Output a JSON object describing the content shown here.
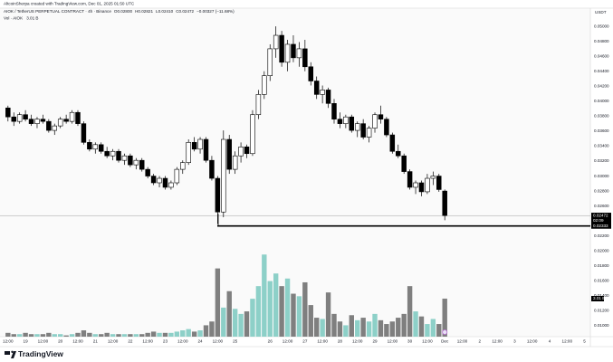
{
  "chart_data": {
    "type": "candlestick",
    "title": "AltcoinSherpa created with TradingView.com, Dec 01, 2025 01:50 UTC",
    "symbol": "AIOK / TetherUS PERPETUAL CONTRACT · 4h · Binance",
    "header_values": [
      "O0.02800",
      "H0.02821",
      "L0.02410",
      "C0.02472",
      "−0.00327 (−11.68%)"
    ],
    "currency": "USDT",
    "logo": "TradingView",
    "up_color": "#ffffff",
    "down_color": "#000000",
    "xlim": [
      -1.37,
      100
    ],
    "xticks": [
      {
        "value": 0,
        "label": "12:00"
      },
      {
        "value": 3,
        "label": "19"
      },
      {
        "value": 6,
        "label": "12:00"
      },
      {
        "value": 9,
        "label": "20"
      },
      {
        "value": 12,
        "label": "12:00"
      },
      {
        "value": 15,
        "label": "21"
      },
      {
        "value": 18,
        "label": "12:00"
      },
      {
        "value": 21,
        "label": "22"
      },
      {
        "value": 24,
        "label": "12:00"
      },
      {
        "value": 27,
        "label": "23"
      },
      {
        "value": 30,
        "label": "12:00"
      },
      {
        "value": 33,
        "label": "24"
      },
      {
        "value": 36,
        "label": "12:00"
      },
      {
        "value": 39,
        "label": "25"
      },
      {
        "value": 45,
        "label": "26"
      },
      {
        "value": 48,
        "label": "12:00"
      },
      {
        "value": 51,
        "label": "27"
      },
      {
        "value": 54,
        "label": "12:00"
      },
      {
        "value": 57,
        "label": "28"
      },
      {
        "value": 60,
        "label": "12:00"
      },
      {
        "value": 63,
        "label": "29"
      },
      {
        "value": 66,
        "label": "12:00"
      },
      {
        "value": 69,
        "label": "30"
      },
      {
        "value": 72,
        "label": "12:00"
      },
      {
        "value": 75,
        "label": "Dec"
      },
      {
        "value": 78,
        "label": "12:00"
      },
      {
        "value": 81,
        "label": "2"
      },
      {
        "value": 84,
        "label": "12:00"
      },
      {
        "value": 87,
        "label": "3"
      },
      {
        "value": 90,
        "label": "12:00"
      },
      {
        "value": 93,
        "label": "4"
      },
      {
        "value": 96,
        "label": "12:00"
      },
      {
        "value": 99,
        "label": "5"
      }
    ],
    "ylim": [
      0.00855,
      0.05243
    ],
    "yticks": [
      {
        "value": 0.05,
        "label": "0.05000"
      },
      {
        "value": 0.048,
        "label": "0.04800"
      },
      {
        "value": 0.046,
        "label": "0.04600"
      },
      {
        "value": 0.044,
        "label": "0.04400"
      },
      {
        "value": 0.042,
        "label": "0.04200"
      },
      {
        "value": 0.04,
        "label": "0.04000"
      },
      {
        "value": 0.038,
        "label": "0.03800"
      },
      {
        "value": 0.036,
        "label": "0.03600"
      },
      {
        "value": 0.034,
        "label": "0.03400"
      },
      {
        "value": 0.032,
        "label": "0.03200"
      },
      {
        "value": 0.03,
        "label": "0.03000"
      },
      {
        "value": 0.028,
        "label": "0.02800"
      },
      {
        "value": 0.026,
        "label": "0.02600"
      },
      {
        "value": 0.022,
        "label": "0.02200"
      },
      {
        "value": 0.02,
        "label": "0.02000"
      },
      {
        "value": 0.018,
        "label": "0.01800"
      },
      {
        "value": 0.016,
        "label": "0.01600"
      },
      {
        "value": 0.014,
        "label": "0.01400"
      },
      {
        "value": 0.012,
        "label": "0.01200"
      },
      {
        "value": 0.01,
        "label": "0.01000"
      }
    ],
    "open": [
      0.0391,
      0.0379,
      0.0373,
      0.0382,
      0.0376,
      0.037,
      0.0376,
      0.0373,
      0.0361,
      0.0367,
      0.0376,
      0.0373,
      0.0385,
      0.037,
      0.0345,
      0.0336,
      0.0342,
      0.0333,
      0.0327,
      0.0333,
      0.0321,
      0.0327,
      0.0315,
      0.0321,
      0.0309,
      0.03,
      0.0291,
      0.0297,
      0.0285,
      0.0291,
      0.0309,
      0.0318,
      0.0345,
      0.0336,
      0.0349,
      0.0321,
      0.0297,
      0.0252,
      0.0349,
      0.0309,
      0.0327,
      0.0339,
      0.033,
      0.0382,
      0.0409,
      0.0434,
      0.047,
      0.0488,
      0.0452,
      0.0476,
      0.0458,
      0.047,
      0.0446,
      0.0427,
      0.0409,
      0.0415,
      0.0397,
      0.0376,
      0.037,
      0.0379,
      0.0361,
      0.037,
      0.0352,
      0.0364,
      0.0382,
      0.0376,
      0.0355,
      0.0333,
      0.0327,
      0.0306,
      0.0285,
      0.0291,
      0.0279,
      0.0297,
      0.03,
      0.028
    ],
    "high": [
      0.0394,
      0.0385,
      0.0385,
      0.0388,
      0.0382,
      0.0379,
      0.0382,
      0.0376,
      0.037,
      0.0379,
      0.0382,
      0.0388,
      0.0388,
      0.0373,
      0.0349,
      0.0345,
      0.0345,
      0.0339,
      0.0336,
      0.0336,
      0.033,
      0.033,
      0.0324,
      0.0324,
      0.0312,
      0.0303,
      0.03,
      0.03,
      0.0294,
      0.0312,
      0.0321,
      0.0349,
      0.0352,
      0.0352,
      0.0352,
      0.0327,
      0.03,
      0.0361,
      0.0355,
      0.0333,
      0.0345,
      0.0342,
      0.0388,
      0.0415,
      0.044,
      0.0476,
      0.05,
      0.0494,
      0.0482,
      0.0488,
      0.0479,
      0.0482,
      0.0452,
      0.0433,
      0.0421,
      0.0418,
      0.0403,
      0.0385,
      0.0382,
      0.0382,
      0.0373,
      0.0376,
      0.0367,
      0.0385,
      0.0394,
      0.0379,
      0.0358,
      0.0342,
      0.033,
      0.0309,
      0.0294,
      0.0294,
      0.0303,
      0.0306,
      0.0303,
      0.02821
    ],
    "low": [
      0.0373,
      0.0367,
      0.037,
      0.0373,
      0.0367,
      0.0364,
      0.037,
      0.0358,
      0.0355,
      0.0364,
      0.037,
      0.037,
      0.0367,
      0.0342,
      0.0333,
      0.033,
      0.033,
      0.0324,
      0.0321,
      0.0318,
      0.0315,
      0.0312,
      0.0309,
      0.0306,
      0.0297,
      0.0288,
      0.0285,
      0.0282,
      0.0282,
      0.0288,
      0.0303,
      0.0315,
      0.0333,
      0.033,
      0.0318,
      0.0294,
      0.0236,
      0.0245,
      0.0303,
      0.0303,
      0.0318,
      0.0324,
      0.0327,
      0.0376,
      0.0403,
      0.0427,
      0.0458,
      0.0446,
      0.044,
      0.0452,
      0.0446,
      0.044,
      0.0421,
      0.0403,
      0.0397,
      0.0391,
      0.037,
      0.0364,
      0.0364,
      0.0358,
      0.0352,
      0.0349,
      0.0345,
      0.0358,
      0.037,
      0.0352,
      0.033,
      0.0324,
      0.0303,
      0.0282,
      0.0276,
      0.0273,
      0.0276,
      0.0288,
      0.0279,
      0.0241
    ],
    "close": [
      0.0379,
      0.0373,
      0.0382,
      0.0376,
      0.037,
      0.0376,
      0.0373,
      0.0361,
      0.0367,
      0.0376,
      0.0373,
      0.0385,
      0.037,
      0.0345,
      0.0336,
      0.0342,
      0.0333,
      0.0327,
      0.0333,
      0.0321,
      0.0327,
      0.0315,
      0.0321,
      0.0309,
      0.03,
      0.0291,
      0.0297,
      0.0285,
      0.0291,
      0.0309,
      0.0318,
      0.0345,
      0.0336,
      0.0349,
      0.0321,
      0.0297,
      0.0252,
      0.0349,
      0.0309,
      0.0327,
      0.0339,
      0.033,
      0.0382,
      0.0409,
      0.0434,
      0.047,
      0.0488,
      0.0452,
      0.0476,
      0.0458,
      0.047,
      0.0446,
      0.0427,
      0.0409,
      0.0415,
      0.0397,
      0.0376,
      0.037,
      0.0379,
      0.0361,
      0.037,
      0.0352,
      0.0364,
      0.0382,
      0.0376,
      0.0355,
      0.0333,
      0.0327,
      0.0306,
      0.0285,
      0.0291,
      0.0279,
      0.0297,
      0.03,
      0.0282,
      0.02472
    ],
    "countdown": "02:09",
    "hline": 0.02333,
    "volume": {
      "name": "Vol · AIOK",
      "up_color": "#8dd0c8",
      "down_color": "#7f7f7f",
      "vlim": [
        0,
        26
      ],
      "values": [
        0.3,
        0.2,
        0.2,
        0.3,
        0.2,
        0.2,
        0.2,
        0.3,
        0.2,
        0.2,
        0.1,
        0.2,
        0.3,
        0.5,
        0.3,
        0.2,
        0.2,
        0.3,
        0.2,
        0.2,
        0.2,
        0.2,
        0.2,
        0.2,
        0.3,
        0.4,
        0.3,
        0.3,
        0.3,
        0.4,
        0.5,
        0.6,
        0.4,
        0.5,
        0.9,
        1.2,
        5.4,
        2.3,
        3.6,
        2.2,
        1.8,
        2.0,
        3.0,
        4.0,
        6.5,
        4.4,
        5.0,
        4.0,
        4.6,
        3.4,
        3.2,
        4.3,
        2.5,
        1.5,
        1.4,
        3.5,
        1.8,
        1.2,
        0.9,
        1.7,
        1.3,
        1.5,
        1.2,
        1.8,
        1.3,
        1.0,
        1.2,
        1.5,
        1.8,
        4.0,
        2.0,
        1.6,
        1.0,
        1.4,
        1.0,
        3.01
      ],
      "value_labels": [
        null,
        null,
        null,
        null,
        null,
        null,
        null,
        null,
        null,
        null,
        null,
        null,
        null,
        null,
        null,
        null,
        null,
        null,
        null,
        null,
        null,
        null,
        null,
        null,
        null,
        null,
        null,
        null,
        null,
        null,
        null,
        null,
        null,
        null,
        null,
        null,
        null,
        null,
        null,
        null,
        null,
        null,
        null,
        null,
        null,
        null,
        null,
        null,
        null,
        null,
        null,
        null,
        null,
        null,
        null,
        null,
        null,
        null,
        null,
        null,
        null,
        null,
        null,
        null,
        null,
        null,
        null,
        null,
        null,
        null,
        null,
        null,
        null,
        null,
        null,
        "3.01 B"
      ]
    }
  }
}
